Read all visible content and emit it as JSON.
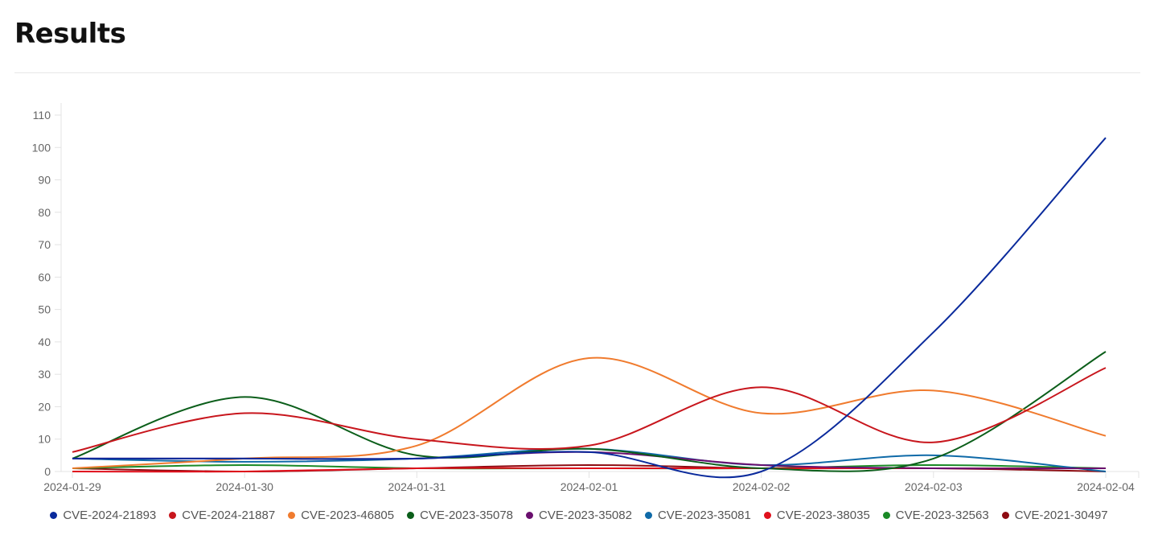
{
  "page": {
    "title": "Results"
  },
  "chart_data": {
    "type": "line",
    "title": "",
    "xlabel": "",
    "ylabel": "",
    "x": [
      "2024-01-29",
      "2024-01-30",
      "2024-01-31",
      "2024-02-01",
      "2024-02-02",
      "2024-02-03",
      "2024-02-04"
    ],
    "yticks": [
      0,
      10,
      20,
      30,
      40,
      50,
      60,
      70,
      80,
      90,
      100,
      110
    ],
    "ylim": [
      0,
      110
    ],
    "grid": false,
    "legend_position": "bottom",
    "smooth": true,
    "series": [
      {
        "name": "CVE-2024-21893",
        "color": "#0a2a9c",
        "values": [
          4,
          4,
          4,
          6,
          0,
          43,
          103
        ]
      },
      {
        "name": "CVE-2024-21887",
        "color": "#c8161d",
        "values": [
          6,
          18,
          10,
          8,
          26,
          9,
          32
        ]
      },
      {
        "name": "CVE-2023-46805",
        "color": "#f07b2e",
        "values": [
          1,
          4,
          8,
          35,
          18,
          25,
          11
        ]
      },
      {
        "name": "CVE-2023-35078",
        "color": "#0b5e1a",
        "values": [
          4,
          23,
          5,
          7,
          1,
          4,
          37
        ]
      },
      {
        "name": "CVE-2023-35082",
        "color": "#6a0f6e",
        "values": [
          4,
          4,
          4,
          6,
          2,
          1,
          1
        ]
      },
      {
        "name": "CVE-2023-35081",
        "color": "#0f6aa8",
        "values": [
          4,
          3,
          4,
          7,
          2,
          5,
          0
        ]
      },
      {
        "name": "CVE-2023-38035",
        "color": "#e0101c",
        "values": [
          0,
          0,
          1,
          1,
          1,
          1,
          1
        ]
      },
      {
        "name": "CVE-2023-32563",
        "color": "#1a8a26",
        "values": [
          1,
          2,
          1,
          1,
          1,
          2,
          1
        ]
      },
      {
        "name": "CVE-2021-30497",
        "color": "#8e0c12",
        "values": [
          1,
          0,
          1,
          2,
          1,
          1,
          0
        ]
      }
    ]
  }
}
